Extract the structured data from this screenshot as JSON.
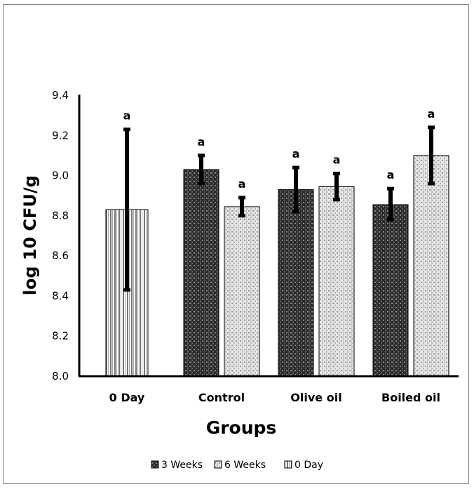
{
  "chart_data": {
    "type": "bar",
    "title": "",
    "xlabel": "Groups",
    "ylabel": "log 10 CFU/g",
    "ylim": [
      8.0,
      9.4
    ],
    "yticks": [
      "8.0",
      "8.2",
      "8.4",
      "8.6",
      "8.8",
      "9.0",
      "9.2",
      "9.4"
    ],
    "categories": [
      "0 Day",
      "Control",
      "Olive oil",
      "Boiled oil"
    ],
    "grid": false,
    "legend_position": "bottom",
    "series": [
      {
        "name": "3 Weeks",
        "color": "#3a3a3a",
        "pattern": "dark-checker",
        "values": [
          null,
          9.03,
          8.93,
          8.855
        ],
        "err_high": [
          null,
          9.1,
          9.04,
          8.935
        ],
        "err_low": [
          null,
          8.96,
          8.82,
          8.78
        ],
        "labels": [
          null,
          "a",
          "a",
          "a"
        ]
      },
      {
        "name": "6 Weeks",
        "color": "#d0d0d0",
        "pattern": "light-checker",
        "values": [
          null,
          8.845,
          8.945,
          9.1
        ],
        "err_high": [
          null,
          8.89,
          9.01,
          9.24
        ],
        "err_low": [
          null,
          8.8,
          8.88,
          8.96
        ],
        "labels": [
          null,
          "a",
          "a",
          "a"
        ]
      },
      {
        "name": "0 Day",
        "color": "#808080",
        "pattern": "vertical-stripes",
        "values": [
          8.83,
          null,
          null,
          null
        ],
        "err_high": [
          9.23,
          null,
          null,
          null
        ],
        "err_low": [
          8.43,
          null,
          null,
          null
        ],
        "labels": [
          "a",
          null,
          null,
          null
        ]
      }
    ]
  }
}
